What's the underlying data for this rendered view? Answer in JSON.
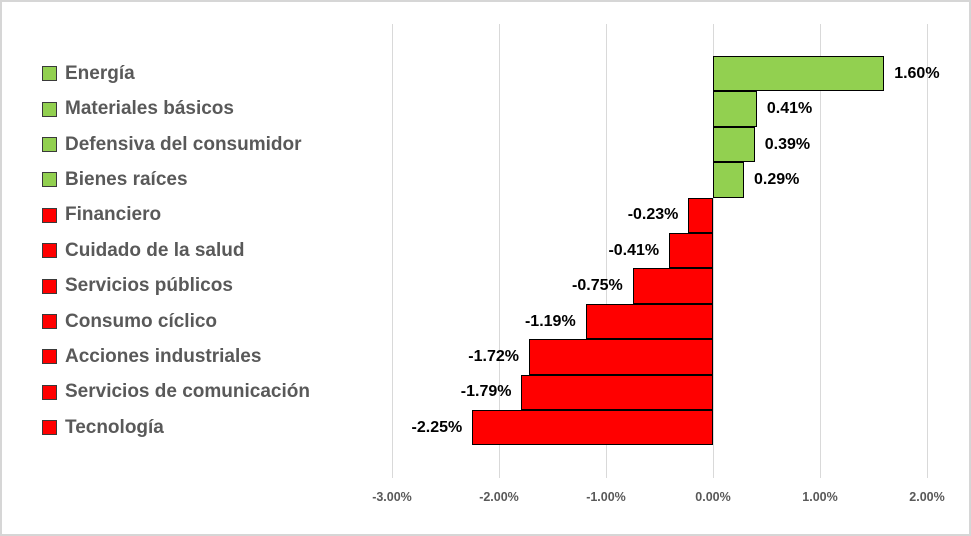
{
  "chart_data": {
    "type": "bar",
    "orientation": "horizontal",
    "title": "",
    "categories": [
      "Energía",
      "Materiales básicos",
      "Defensiva del consumidor",
      "Bienes raíces",
      "Financiero",
      "Cuidado de la salud",
      "Servicios públicos",
      "Consumo cíclico",
      "Acciones industriales",
      "Servicios de comunicación",
      "Tecnología"
    ],
    "values": [
      1.6,
      0.41,
      0.39,
      0.29,
      -0.23,
      -0.41,
      -0.75,
      -1.19,
      -1.72,
      -1.79,
      -2.25
    ],
    "value_labels": [
      "1.60%",
      "0.41%",
      "0.39%",
      "0.29%",
      "-0.23%",
      "-0.41%",
      "-0.75%",
      "-1.19%",
      "-1.72%",
      "-1.79%",
      "-2.25%"
    ],
    "x_ticks": [
      "-3.00%",
      "-2.00%",
      "-1.00%",
      "0.00%",
      "1.00%",
      "2.00%"
    ],
    "x_tick_values": [
      -3,
      -2,
      -1,
      0,
      1,
      2
    ],
    "xlim": [
      -3.05,
      2.2
    ],
    "xlabel": "",
    "ylabel": "",
    "grid": true,
    "legend_position": "none",
    "colors": {
      "positive": "#92D050",
      "negative": "#FF0000",
      "bar_border": "#000000",
      "gridline": "#D9D9D9",
      "category_label": "#595959",
      "tick_label": "#595959",
      "value_label": "#000000",
      "frame_border": "#D6D6D6",
      "background": "#FFFFFF"
    }
  }
}
